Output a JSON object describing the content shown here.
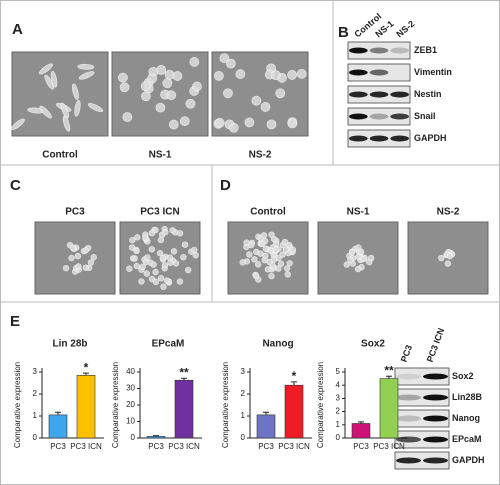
{
  "panels": {
    "A": {
      "label": "A",
      "captions": [
        "Control",
        "NS-1",
        "NS-2"
      ]
    },
    "B": {
      "label": "B",
      "lanes": [
        "Control",
        "NS-1",
        "NS-2"
      ],
      "proteins": [
        "ZEB1",
        "Vimentin",
        "Nestin",
        "Snail",
        "GAPDH"
      ]
    },
    "C": {
      "label": "C",
      "captions": [
        "PC3",
        "PC3 ICN"
      ]
    },
    "D": {
      "label": "D",
      "captions": [
        "Control",
        "NS-1",
        "NS-2"
      ]
    },
    "E": {
      "label": "E",
      "lanes": [
        "PC3",
        "PC3 ICN"
      ],
      "proteins": [
        "Sox2",
        "Lin28B",
        "Nanog",
        "EPcaM",
        "GAPDH"
      ]
    }
  },
  "chart_data": [
    {
      "type": "bar",
      "title": "Lin 28b",
      "ylabel": "Comparative expression",
      "categories": [
        "PC3",
        "PC3 ICN"
      ],
      "values": [
        1.05,
        2.85
      ],
      "errors": [
        0.12,
        0.1
      ],
      "colors": [
        "#3ea6ea",
        "#ffc000"
      ],
      "annotation": "*",
      "ylim": [
        0,
        3
      ],
      "yticks": [
        0,
        1,
        2,
        3
      ]
    },
    {
      "type": "bar",
      "title": "EPcaM",
      "ylabel": "Comparative expression",
      "categories": [
        "PC3",
        "PC3 ICN"
      ],
      "values": [
        1,
        35
      ],
      "errors": [
        0.4,
        1.2
      ],
      "colors": [
        "#3ea6ea",
        "#7030a0"
      ],
      "annotation": "**",
      "ylim": [
        0,
        40
      ],
      "yticks": [
        0,
        10,
        20,
        30,
        40
      ]
    },
    {
      "type": "bar",
      "title": "Nanog",
      "ylabel": "Comparative expression",
      "categories": [
        "PC3",
        "PC3 ICN"
      ],
      "values": [
        1.05,
        2.4
      ],
      "errors": [
        0.12,
        0.15
      ],
      "colors": [
        "#6f73c4",
        "#ee1c25"
      ],
      "annotation": "*",
      "ylim": [
        0,
        3
      ],
      "yticks": [
        0,
        1,
        2,
        3
      ]
    },
    {
      "type": "bar",
      "title": "Sox2",
      "ylabel": "Comparative expression",
      "categories": [
        "PC3",
        "PC3 ICN"
      ],
      "values": [
        1.1,
        4.5
      ],
      "errors": [
        0.12,
        0.18
      ],
      "colors": [
        "#cc1177",
        "#92d050"
      ],
      "annotation": "**",
      "ylim": [
        0,
        5
      ],
      "yticks": [
        0,
        1,
        2,
        3,
        4,
        5
      ]
    }
  ]
}
